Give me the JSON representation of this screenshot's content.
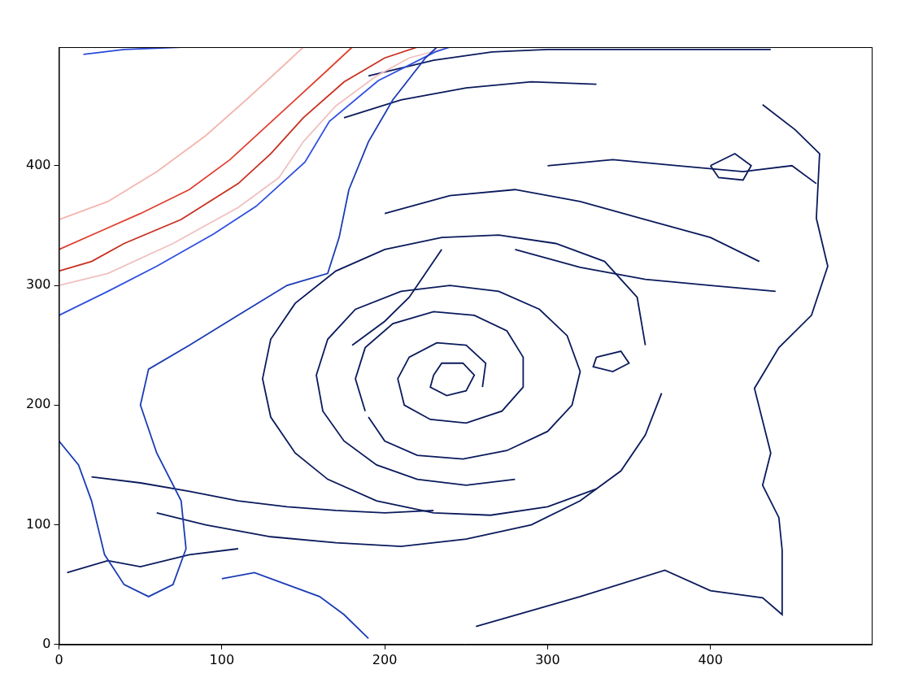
{
  "chart_data": {
    "type": "line",
    "xlim": [
      0,
      499
    ],
    "ylim": [
      0,
      499
    ],
    "xticks": [
      0,
      100,
      200,
      300,
      400
    ],
    "yticks": [
      0,
      100,
      200,
      300,
      400
    ],
    "grid": false,
    "series": [
      {
        "color": "#1a3cb4",
        "x": [
          0,
          12,
          20,
          28,
          40,
          55,
          70,
          78,
          75,
          60,
          50,
          55,
          80,
          110,
          140,
          165,
          172,
          178,
          190,
          205,
          225,
          232
        ],
        "values": [
          170,
          150,
          120,
          75,
          50,
          40,
          50,
          80,
          120,
          160,
          200,
          230,
          250,
          275,
          300,
          310,
          340,
          380,
          420,
          455,
          490,
          499
        ]
      },
      {
        "color": "#3050e0",
        "x": [
          0,
          30,
          60,
          95,
          121,
          151,
          166,
          196,
          231,
          240
        ],
        "values": [
          275,
          295,
          316,
          343,
          366,
          403,
          437,
          471,
          495,
          499
        ]
      },
      {
        "color": "#2a48d8",
        "x": [
          15,
          40,
          75
        ],
        "values": [
          493,
          497,
          499
        ]
      },
      {
        "color": "#1a3cb4",
        "x": [
          100,
          120,
          140,
          160,
          175,
          190
        ],
        "values": [
          55,
          60,
          50,
          40,
          25,
          5
        ]
      },
      {
        "color": "#f0c0c0",
        "x": [
          0,
          30,
          70,
          110,
          135,
          150,
          170,
          195,
          215,
          240
        ],
        "values": [
          300,
          310,
          335,
          365,
          390,
          420,
          450,
          475,
          490,
          499
        ]
      },
      {
        "color": "#f4b6ae",
        "x": [
          0,
          30,
          60,
          90,
          115,
          135,
          150
        ],
        "values": [
          355,
          370,
          395,
          425,
          455,
          480,
          499
        ]
      },
      {
        "color": "#c8301f",
        "x": [
          0,
          20,
          40,
          75,
          110,
          130,
          150,
          175,
          200,
          220
        ],
        "values": [
          312,
          320,
          335,
          355,
          385,
          410,
          440,
          470,
          490,
          499
        ]
      },
      {
        "color": "#e04030",
        "x": [
          0,
          25,
          50,
          80,
          105,
          125,
          145,
          165,
          180
        ],
        "values": [
          330,
          345,
          360,
          380,
          405,
          430,
          455,
          480,
          499
        ]
      },
      {
        "color": "#0a1a5c",
        "x": [
          230,
          235,
          248,
          255,
          250,
          238,
          228,
          230
        ],
        "values": [
          225,
          235,
          235,
          225,
          212,
          208,
          215,
          225
        ]
      },
      {
        "color": "#0a1a5c",
        "x": [
          260,
          262,
          250,
          232,
          215,
          208,
          212,
          228,
          250,
          272,
          285,
          285,
          275,
          255,
          230,
          205,
          188,
          182,
          188
        ],
        "values": [
          215,
          235,
          250,
          252,
          240,
          222,
          200,
          188,
          185,
          195,
          215,
          240,
          262,
          275,
          278,
          268,
          248,
          222,
          195
        ]
      },
      {
        "color": "#0a1a5c",
        "x": [
          190,
          200,
          220,
          248,
          275,
          300,
          315,
          320,
          312,
          295,
          270,
          240,
          210,
          182,
          165,
          158,
          162,
          175,
          195,
          220,
          250,
          280
        ],
        "values": [
          190,
          170,
          158,
          155,
          162,
          178,
          200,
          228,
          258,
          280,
          295,
          300,
          295,
          280,
          255,
          225,
          195,
          170,
          150,
          138,
          133,
          138
        ]
      },
      {
        "color": "#0a1a5c",
        "x": [
          360,
          355,
          335,
          305,
          270,
          235,
          200,
          170,
          145,
          130,
          125,
          130,
          145,
          165,
          195,
          230,
          265,
          300,
          330
        ],
        "values": [
          250,
          290,
          320,
          335,
          342,
          340,
          330,
          312,
          285,
          255,
          222,
          190,
          160,
          138,
          120,
          110,
          108,
          115,
          130
        ]
      },
      {
        "color": "#0a1a5c",
        "x": [
          60,
          90,
          130,
          170,
          210,
          250,
          290,
          320,
          345,
          360,
          370
        ],
        "values": [
          110,
          100,
          90,
          85,
          82,
          88,
          100,
          120,
          145,
          175,
          210
        ]
      },
      {
        "color": "#0a1a5c",
        "x": [
          20,
          50,
          80,
          110,
          140,
          170,
          200,
          230
        ],
        "values": [
          140,
          135,
          128,
          120,
          115,
          112,
          110,
          112
        ]
      },
      {
        "color": "#0a1a5c",
        "x": [
          256,
          320,
          372,
          400,
          432,
          444,
          444,
          442,
          432,
          437,
          427,
          442,
          462,
          472,
          465,
          467,
          452,
          432
        ],
        "values": [
          15,
          40,
          62,
          45,
          39,
          25,
          79,
          106,
          133,
          160,
          214,
          248,
          275,
          316,
          356,
          410,
          430,
          451
        ]
      },
      {
        "color": "#0a1a5c",
        "x": [
          190,
          230,
          266,
          300,
          350,
          400,
          437
        ],
        "values": [
          475,
          488,
          495,
          497,
          497,
          497,
          497
        ]
      },
      {
        "color": "#0a1a5c",
        "x": [
          300,
          340,
          380,
          420,
          450,
          465
        ],
        "values": [
          400,
          405,
          400,
          395,
          400,
          385
        ]
      },
      {
        "color": "#0a1a5c",
        "x": [
          200,
          240,
          280,
          320,
          360,
          400,
          430
        ],
        "values": [
          360,
          375,
          380,
          370,
          355,
          340,
          320
        ]
      },
      {
        "color": "#0a1a5c",
        "x": [
          175,
          210,
          250,
          290,
          330
        ],
        "values": [
          440,
          455,
          465,
          470,
          468
        ]
      },
      {
        "color": "#0a1a5c",
        "x": [
          280,
          320,
          360,
          400,
          440
        ],
        "values": [
          330,
          315,
          305,
          300,
          295
        ]
      },
      {
        "color": "#0a1a5c",
        "x": [
          180,
          200,
          215,
          225,
          235
        ],
        "values": [
          250,
          270,
          290,
          310,
          330
        ]
      },
      {
        "color": "#0a1a5c",
        "x": [
          5,
          30,
          50,
          80,
          110
        ],
        "values": [
          60,
          70,
          65,
          75,
          80
        ]
      },
      {
        "color": "#0a1a5c",
        "x": [
          400,
          415,
          425,
          420,
          405,
          400
        ],
        "values": [
          400,
          410,
          400,
          388,
          390,
          400
        ]
      },
      {
        "color": "#0a1a5c",
        "x": [
          330,
          345,
          350,
          340,
          328,
          330
        ],
        "values": [
          240,
          245,
          235,
          228,
          232,
          240
        ]
      }
    ]
  }
}
